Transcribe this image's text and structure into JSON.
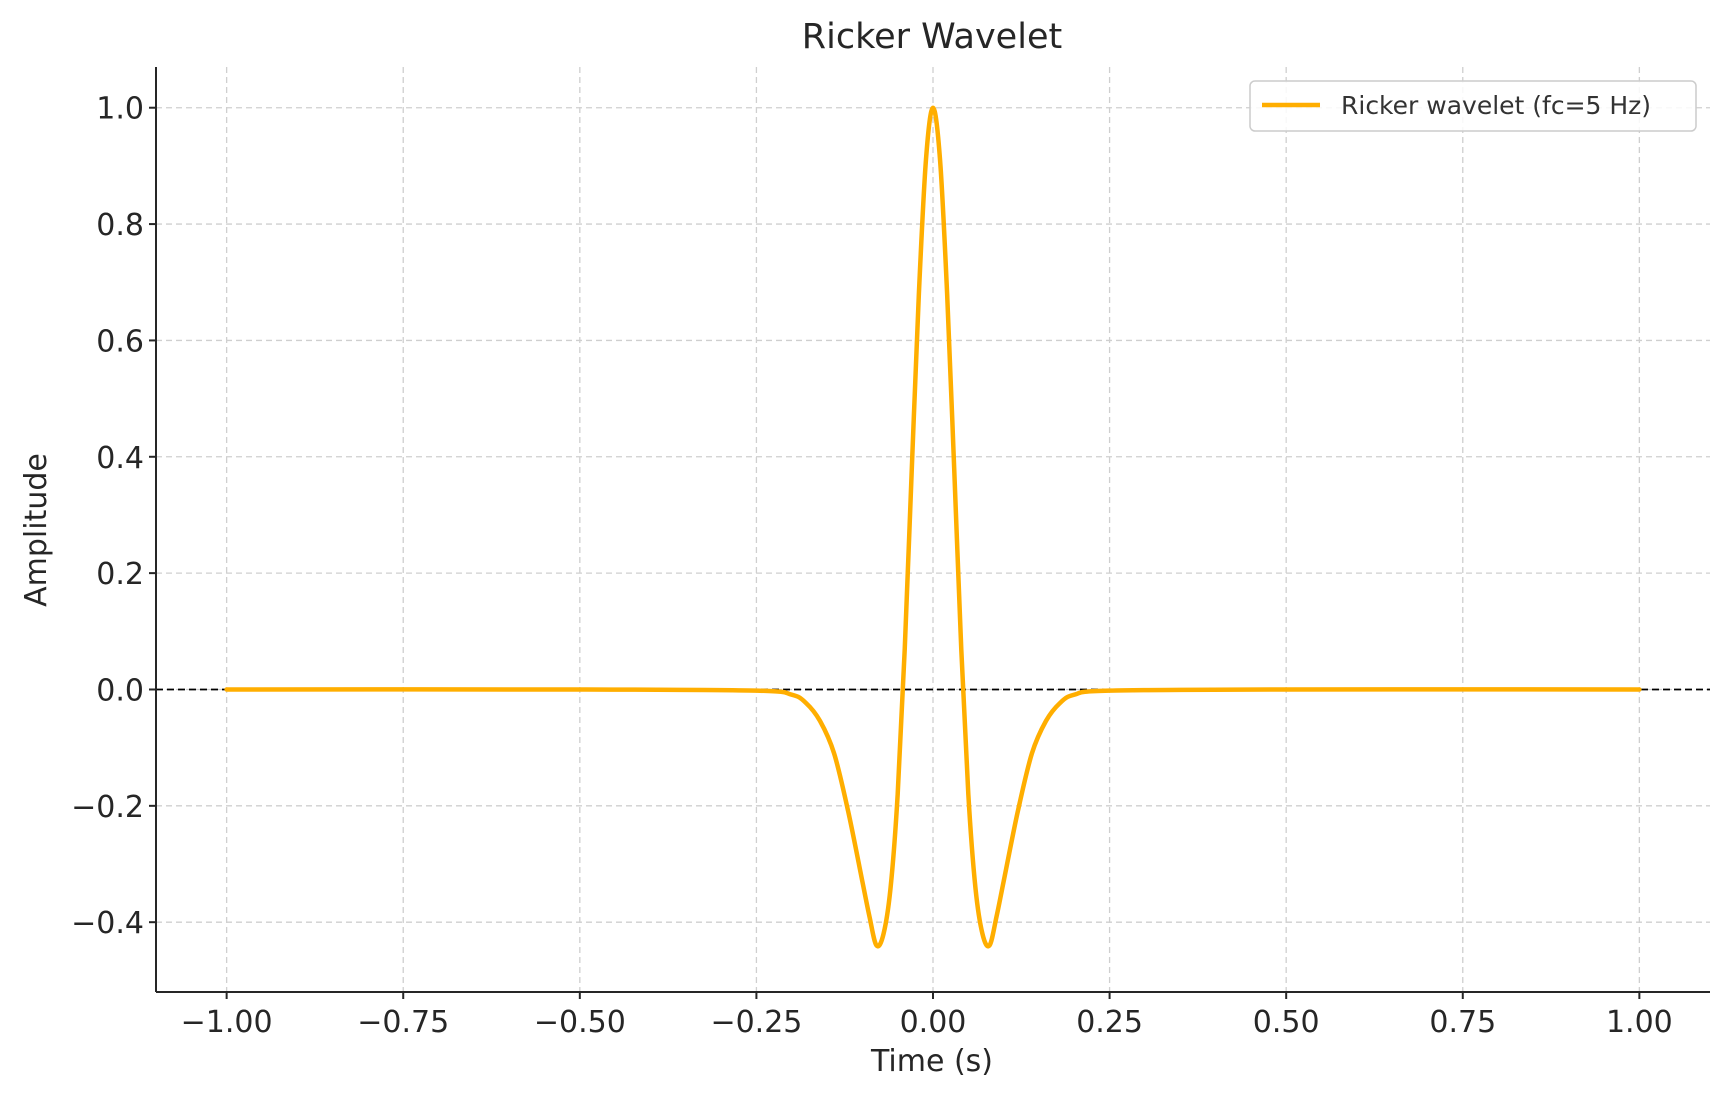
{
  "chart_data": {
    "type": "line",
    "title": "Ricker Wavelet",
    "xlabel": "Time (s)",
    "ylabel": "Amplitude",
    "xlim": [
      -1.1,
      1.1
    ],
    "ylim": [
      -0.52,
      1.07
    ],
    "x_ticks": [
      -1.0,
      -0.75,
      -0.5,
      -0.25,
      0.0,
      0.25,
      0.5,
      0.75,
      1.0
    ],
    "x_tick_labels": [
      "−1.00",
      "−0.75",
      "−0.50",
      "−0.25",
      "0.00",
      "0.25",
      "0.50",
      "0.75",
      "1.00"
    ],
    "y_ticks": [
      -0.4,
      -0.2,
      0.0,
      0.2,
      0.4,
      0.6,
      0.8,
      1.0
    ],
    "y_tick_labels": [
      "−0.4",
      "−0.2",
      "0.0",
      "0.2",
      "0.4",
      "0.6",
      "0.8",
      "1.0"
    ],
    "grid": true,
    "legend_position": "top-right",
    "reference_line": {
      "y": 0.0,
      "style": "dashed",
      "color": "#000000"
    },
    "series": [
      {
        "name": "Ricker wavelet (fc=5 Hz)",
        "color": "#ffae00",
        "x": [
          -1.0,
          -0.5,
          -0.25,
          -0.2,
          -0.18,
          -0.16,
          -0.14,
          -0.12,
          -0.1,
          -0.09,
          -0.08,
          -0.07,
          -0.06,
          -0.05,
          -0.04,
          -0.03,
          -0.02,
          -0.01,
          0.0,
          0.01,
          0.02,
          0.03,
          0.04,
          0.05,
          0.06,
          0.07,
          0.08,
          0.09,
          0.1,
          0.12,
          0.14,
          0.16,
          0.18,
          0.2,
          0.25,
          0.5,
          1.0
        ],
        "y": [
          0.0,
          0.0,
          -0.002,
          -0.009,
          -0.023,
          -0.054,
          -0.11,
          -0.21,
          -0.33,
          -0.39,
          -0.44,
          -0.42,
          -0.34,
          -0.18,
          0.07,
          0.38,
          0.68,
          0.91,
          1.0,
          0.91,
          0.68,
          0.38,
          0.07,
          -0.18,
          -0.34,
          -0.42,
          -0.44,
          -0.39,
          -0.33,
          -0.21,
          -0.11,
          -0.054,
          -0.023,
          -0.009,
          -0.002,
          0.0,
          0.0
        ]
      }
    ]
  }
}
